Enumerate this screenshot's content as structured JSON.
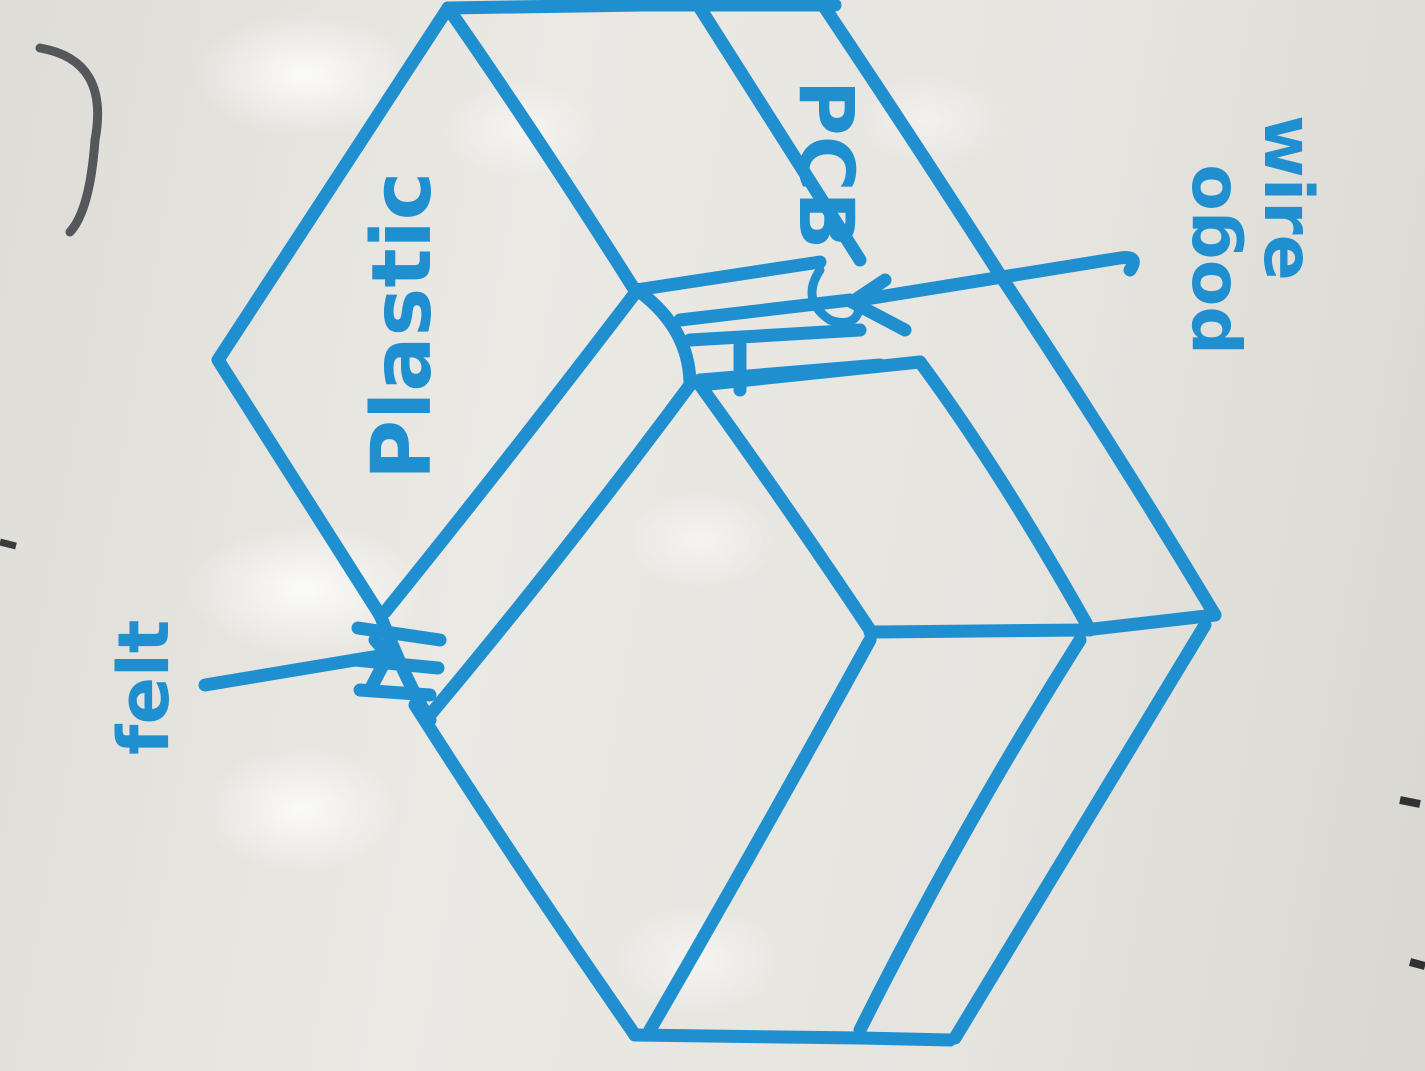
{
  "labels": {
    "plastic": "Plastic",
    "pcb": "PCB",
    "felt": "felt",
    "pogo_wire": "pogo",
    "wire": "wire"
  },
  "colors": {
    "marker_ink": "#1f8fd0",
    "whiteboard": "#e9e7e1",
    "frame_metal": "#55585a"
  }
}
